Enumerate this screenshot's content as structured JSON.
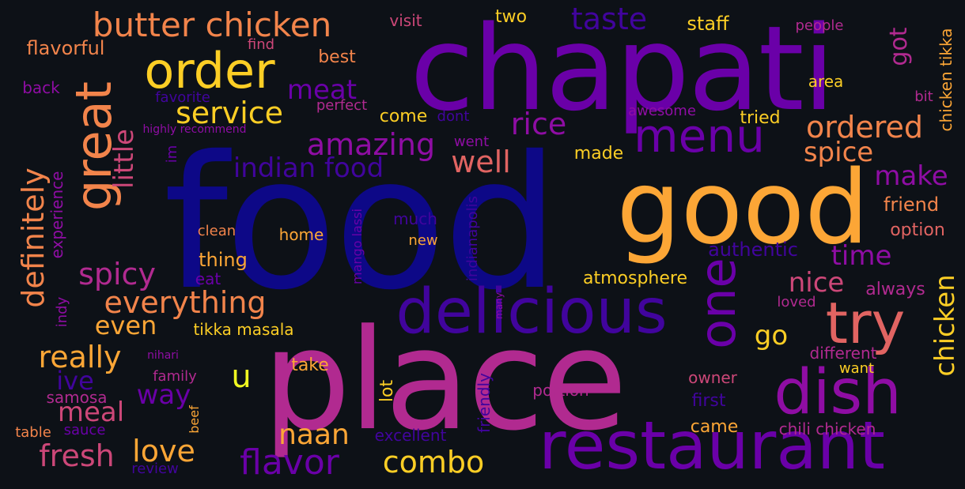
{
  "palette": {
    "background": "#0d1117",
    "navy": "#0d0887",
    "indigo": "#41049d",
    "purple": "#6a00a8",
    "violet": "#8f0da4",
    "magenta": "#b12a90",
    "pink": "#cc4778",
    "salmon": "#e16462",
    "orange": "#f2844b",
    "amber": "#fca636",
    "yellow": "#fcce25",
    "lemon": "#f0f921"
  },
  "words": [
    {
      "text": "food",
      "color": "#0d0887"
    },
    {
      "text": "place",
      "color": "#b12a90"
    },
    {
      "text": "chapati",
      "color": "#6a00a8"
    },
    {
      "text": "good",
      "color": "#fca636"
    },
    {
      "text": "restaurant",
      "color": "#6a00a8"
    },
    {
      "text": "delicious",
      "color": "#41049d"
    },
    {
      "text": "dish",
      "color": "#8f0da4"
    },
    {
      "text": "try",
      "color": "#e16462"
    },
    {
      "text": "order",
      "color": "#fcce25"
    },
    {
      "text": "great",
      "color": "#f2844b"
    },
    {
      "text": "one",
      "color": "#6a00a8"
    },
    {
      "text": "menu",
      "color": "#6a00a8"
    },
    {
      "text": "butter chicken",
      "color": "#f2844b"
    },
    {
      "text": "taste",
      "color": "#41049d"
    },
    {
      "text": "ordered",
      "color": "#f2844b"
    },
    {
      "text": "service",
      "color": "#fcce25"
    },
    {
      "text": "amazing",
      "color": "#8f0da4"
    },
    {
      "text": "well",
      "color": "#e16462"
    },
    {
      "text": "rice",
      "color": "#8f0da4"
    },
    {
      "text": "meat",
      "color": "#6a00a8"
    },
    {
      "text": "indian food",
      "color": "#41049d"
    },
    {
      "text": "spice",
      "color": "#f2844b"
    },
    {
      "text": "make",
      "color": "#8f0da4"
    },
    {
      "text": "time",
      "color": "#8f0da4"
    },
    {
      "text": "nice",
      "color": "#cc4778"
    },
    {
      "text": "go",
      "color": "#fcce25"
    },
    {
      "text": "spicy",
      "color": "#b12a90"
    },
    {
      "text": "everything",
      "color": "#f2844b"
    },
    {
      "text": "really",
      "color": "#fca636"
    },
    {
      "text": "even",
      "color": "#fca636"
    },
    {
      "text": "meal",
      "color": "#cc4778"
    },
    {
      "text": "way",
      "color": "#6a00a8"
    },
    {
      "text": "ive",
      "color": "#41049d"
    },
    {
      "text": "fresh",
      "color": "#cc4778"
    },
    {
      "text": "love",
      "color": "#fca636"
    },
    {
      "text": "flavor",
      "color": "#6a00a8"
    },
    {
      "text": "combo",
      "color": "#fcce25"
    },
    {
      "text": "naan",
      "color": "#fca636"
    },
    {
      "text": "u",
      "color": "#f0f921"
    },
    {
      "text": "definitely",
      "color": "#f2844b"
    },
    {
      "text": "little",
      "color": "#cc4778"
    },
    {
      "text": "chicken",
      "color": "#fcce25"
    },
    {
      "text": "got",
      "color": "#b12a90"
    },
    {
      "text": "chicken tikka",
      "color": "#fca636"
    },
    {
      "text": "staff",
      "color": "#fcce25"
    },
    {
      "text": "two",
      "color": "#fcce25"
    },
    {
      "text": "best",
      "color": "#f2844b"
    },
    {
      "text": "visit",
      "color": "#cc4778"
    },
    {
      "text": "find",
      "color": "#cc4778"
    },
    {
      "text": "flavorful",
      "color": "#f2844b"
    },
    {
      "text": "back",
      "color": "#8f0da4"
    },
    {
      "text": "favorite",
      "color": "#41049d"
    },
    {
      "text": "perfect",
      "color": "#b12a90"
    },
    {
      "text": "highly recommend",
      "color": "#8f0da4"
    },
    {
      "text": "come",
      "color": "#fcce25"
    },
    {
      "text": "dont",
      "color": "#41049d"
    },
    {
      "text": "went",
      "color": "#8f0da4"
    },
    {
      "text": "im",
      "color": "#6a00a8"
    },
    {
      "text": "awesome",
      "color": "#8f0da4"
    },
    {
      "text": "tried",
      "color": "#fcce25"
    },
    {
      "text": "made",
      "color": "#fcce25"
    },
    {
      "text": "area",
      "color": "#fcce25"
    },
    {
      "text": "bit",
      "color": "#b12a90"
    },
    {
      "text": "people",
      "color": "#b12a90"
    },
    {
      "text": "friend",
      "color": "#f2844b"
    },
    {
      "text": "option",
      "color": "#e16462"
    },
    {
      "text": "experience",
      "color": "#8f0da4"
    },
    {
      "text": "clean",
      "color": "#f2844b"
    },
    {
      "text": "home",
      "color": "#fca636"
    },
    {
      "text": "much",
      "color": "#41049d"
    },
    {
      "text": "new",
      "color": "#fca636"
    },
    {
      "text": "mango lassi",
      "color": "#6a00a8"
    },
    {
      "text": "indianapolis",
      "color": "#41049d"
    },
    {
      "text": "authentic",
      "color": "#41049d"
    },
    {
      "text": "thing",
      "color": "#fca636"
    },
    {
      "text": "eat",
      "color": "#6a00a8"
    },
    {
      "text": "atmosphere",
      "color": "#fcce25"
    },
    {
      "text": "always",
      "color": "#b12a90"
    },
    {
      "text": "loved",
      "color": "#b12a90"
    },
    {
      "text": "indy",
      "color": "#8f0da4"
    },
    {
      "text": "tikka masala",
      "color": "#fcce25"
    },
    {
      "text": "many",
      "color": "#8f0da4"
    },
    {
      "text": "take",
      "color": "#fca636"
    },
    {
      "text": "lot",
      "color": "#fcce25"
    },
    {
      "text": "family",
      "color": "#b12a90"
    },
    {
      "text": "nihari",
      "color": "#8f0da4"
    },
    {
      "text": "different",
      "color": "#b12a90"
    },
    {
      "text": "want",
      "color": "#fcce25"
    },
    {
      "text": "owner",
      "color": "#cc4778"
    },
    {
      "text": "portion",
      "color": "#b12a90"
    },
    {
      "text": "first",
      "color": "#41049d"
    },
    {
      "text": "samosa",
      "color": "#b12a90"
    },
    {
      "text": "beef",
      "color": "#fca636"
    },
    {
      "text": "friendly",
      "color": "#41049d"
    },
    {
      "text": "excellent",
      "color": "#41049d"
    },
    {
      "text": "came",
      "color": "#fca636"
    },
    {
      "text": "chili chicken",
      "color": "#b12a90"
    },
    {
      "text": "table",
      "color": "#f2844b"
    },
    {
      "text": "sauce",
      "color": "#6a00a8"
    },
    {
      "text": "review",
      "color": "#41049d"
    }
  ]
}
